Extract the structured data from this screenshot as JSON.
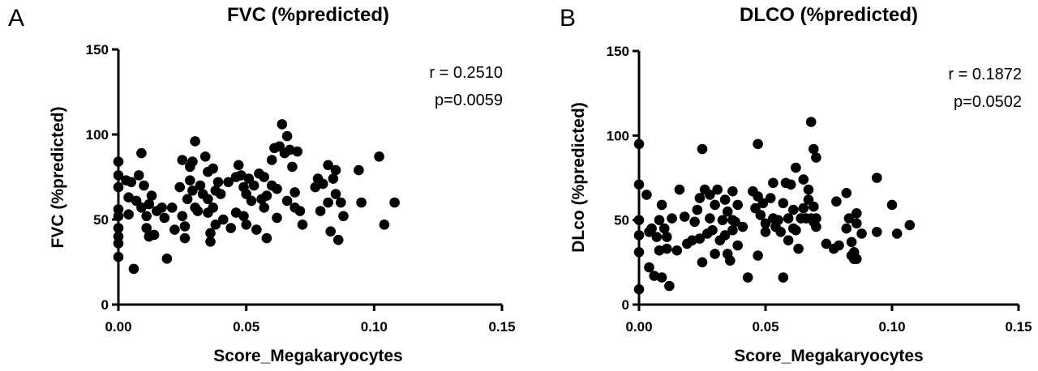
{
  "chart_data": [
    {
      "type": "scatter",
      "panel_label": "A",
      "title": "FVC (%predicted)",
      "xlabel": "Score_Megakaryocytes",
      "ylabel": "FVC (%predicted)",
      "xlim": [
        0,
        0.15
      ],
      "ylim": [
        0,
        150
      ],
      "xticks": [
        0,
        0.05,
        0.1,
        0.15
      ],
      "xtick_labels": [
        "0.00",
        "0.05",
        "0.10",
        "0.15"
      ],
      "yticks": [
        0,
        50,
        100,
        150
      ],
      "ytick_labels": [
        "0",
        "50",
        "100",
        "150"
      ],
      "annotations": [
        "r = 0.2510",
        "p=0.0059"
      ],
      "points": [
        [
          0.0,
          84
        ],
        [
          0.0,
          76
        ],
        [
          0.0,
          69
        ],
        [
          0.0,
          56
        ],
        [
          0.0,
          52
        ],
        [
          0.0,
          45
        ],
        [
          0.0,
          40
        ],
        [
          0.0,
          36
        ],
        [
          0.0,
          28
        ],
        [
          0.003,
          73
        ],
        [
          0.004,
          63
        ],
        [
          0.004,
          53
        ],
        [
          0.005,
          72
        ],
        [
          0.006,
          21
        ],
        [
          0.007,
          61
        ],
        [
          0.008,
          76
        ],
        [
          0.009,
          57
        ],
        [
          0.009,
          89
        ],
        [
          0.01,
          70
        ],
        [
          0.011,
          52
        ],
        [
          0.011,
          45
        ],
        [
          0.012,
          59
        ],
        [
          0.012,
          40
        ],
        [
          0.013,
          64
        ],
        [
          0.014,
          41
        ],
        [
          0.015,
          55
        ],
        [
          0.017,
          57
        ],
        [
          0.018,
          51
        ],
        [
          0.019,
          27
        ],
        [
          0.021,
          57
        ],
        [
          0.022,
          44
        ],
        [
          0.024,
          69
        ],
        [
          0.025,
          85
        ],
        [
          0.025,
          52
        ],
        [
          0.026,
          46
        ],
        [
          0.026,
          39
        ],
        [
          0.027,
          62
        ],
        [
          0.028,
          81
        ],
        [
          0.028,
          73
        ],
        [
          0.029,
          67
        ],
        [
          0.029,
          84
        ],
        [
          0.03,
          57
        ],
        [
          0.03,
          96
        ],
        [
          0.031,
          55
        ],
        [
          0.032,
          70
        ],
        [
          0.033,
          65
        ],
        [
          0.034,
          87
        ],
        [
          0.035,
          78
        ],
        [
          0.035,
          62
        ],
        [
          0.035,
          54
        ],
        [
          0.036,
          42
        ],
        [
          0.036,
          37
        ],
        [
          0.037,
          80
        ],
        [
          0.037,
          57
        ],
        [
          0.038,
          67
        ],
        [
          0.038,
          47
        ],
        [
          0.039,
          72
        ],
        [
          0.04,
          65
        ],
        [
          0.041,
          50
        ],
        [
          0.043,
          72
        ],
        [
          0.044,
          45
        ],
        [
          0.046,
          75
        ],
        [
          0.046,
          54
        ],
        [
          0.047,
          82
        ],
        [
          0.048,
          76
        ],
        [
          0.049,
          69
        ],
        [
          0.049,
          52
        ],
        [
          0.05,
          65
        ],
        [
          0.05,
          47
        ],
        [
          0.051,
          74
        ],
        [
          0.052,
          61
        ],
        [
          0.053,
          70
        ],
        [
          0.054,
          44
        ],
        [
          0.055,
          77
        ],
        [
          0.056,
          62
        ],
        [
          0.057,
          75
        ],
        [
          0.057,
          57
        ],
        [
          0.058,
          64
        ],
        [
          0.058,
          39
        ],
        [
          0.06,
          85
        ],
        [
          0.06,
          70
        ],
        [
          0.061,
          92
        ],
        [
          0.062,
          68
        ],
        [
          0.062,
          51
        ],
        [
          0.063,
          93
        ],
        [
          0.064,
          106
        ],
        [
          0.065,
          89
        ],
        [
          0.066,
          99
        ],
        [
          0.066,
          61
        ],
        [
          0.067,
          91
        ],
        [
          0.068,
          81
        ],
        [
          0.069,
          66
        ],
        [
          0.069,
          57
        ],
        [
          0.07,
          90
        ],
        [
          0.071,
          55
        ],
        [
          0.072,
          47
        ],
        [
          0.077,
          69
        ],
        [
          0.078,
          74
        ],
        [
          0.079,
          55
        ],
        [
          0.08,
          71
        ],
        [
          0.082,
          82
        ],
        [
          0.082,
          60
        ],
        [
          0.083,
          43
        ],
        [
          0.084,
          74
        ],
        [
          0.085,
          79
        ],
        [
          0.085,
          65
        ],
        [
          0.086,
          38
        ],
        [
          0.087,
          60
        ],
        [
          0.088,
          52
        ],
        [
          0.094,
          79
        ],
        [
          0.095,
          60
        ],
        [
          0.102,
          87
        ],
        [
          0.104,
          47
        ],
        [
          0.108,
          60
        ]
      ]
    },
    {
      "type": "scatter",
      "panel_label": "B",
      "title": "DLCO (%predicted)",
      "xlabel": "Score_Megakaryocytes",
      "ylabel": "DLco (%predicted)",
      "xlim": [
        0,
        0.15
      ],
      "ylim": [
        0,
        150
      ],
      "xticks": [
        0,
        0.05,
        0.1,
        0.15
      ],
      "xtick_labels": [
        "0.00",
        "0.05",
        "0.10",
        "0.15"
      ],
      "yticks": [
        0,
        50,
        100,
        150
      ],
      "ytick_labels": [
        "0",
        "50",
        "100",
        "150"
      ],
      "annotations": [
        "r = 0.1872",
        "p=0.0502"
      ],
      "points": [
        [
          0.0,
          95
        ],
        [
          0.0,
          71
        ],
        [
          0.0,
          50
        ],
        [
          0.0,
          41
        ],
        [
          0.0,
          31
        ],
        [
          0.0,
          9
        ],
        [
          0.003,
          65
        ],
        [
          0.004,
          43
        ],
        [
          0.004,
          22
        ],
        [
          0.005,
          45
        ],
        [
          0.006,
          17
        ],
        [
          0.007,
          40
        ],
        [
          0.008,
          32
        ],
        [
          0.008,
          50
        ],
        [
          0.009,
          59
        ],
        [
          0.009,
          16
        ],
        [
          0.01,
          45
        ],
        [
          0.011,
          40
        ],
        [
          0.011,
          33
        ],
        [
          0.012,
          11
        ],
        [
          0.013,
          51
        ],
        [
          0.015,
          32
        ],
        [
          0.016,
          68
        ],
        [
          0.018,
          52
        ],
        [
          0.019,
          36
        ],
        [
          0.021,
          38
        ],
        [
          0.022,
          49
        ],
        [
          0.023,
          56
        ],
        [
          0.024,
          63
        ],
        [
          0.024,
          39
        ],
        [
          0.025,
          25
        ],
        [
          0.025,
          92
        ],
        [
          0.026,
          68
        ],
        [
          0.027,
          42
        ],
        [
          0.028,
          65
        ],
        [
          0.028,
          51
        ],
        [
          0.029,
          44
        ],
        [
          0.03,
          59
        ],
        [
          0.03,
          30
        ],
        [
          0.031,
          68
        ],
        [
          0.032,
          38
        ],
        [
          0.033,
          50
        ],
        [
          0.034,
          62
        ],
        [
          0.034,
          41
        ],
        [
          0.035,
          55
        ],
        [
          0.035,
          30
        ],
        [
          0.036,
          26
        ],
        [
          0.037,
          67
        ],
        [
          0.037,
          50
        ],
        [
          0.037,
          44
        ],
        [
          0.038,
          49
        ],
        [
          0.039,
          59
        ],
        [
          0.039,
          35
        ],
        [
          0.041,
          46
        ],
        [
          0.043,
          16
        ],
        [
          0.045,
          67
        ],
        [
          0.046,
          57
        ],
        [
          0.047,
          95
        ],
        [
          0.047,
          64
        ],
        [
          0.047,
          29
        ],
        [
          0.048,
          53
        ],
        [
          0.049,
          60
        ],
        [
          0.05,
          48
        ],
        [
          0.05,
          43
        ],
        [
          0.052,
          63
        ],
        [
          0.053,
          72
        ],
        [
          0.053,
          51
        ],
        [
          0.054,
          46
        ],
        [
          0.055,
          50
        ],
        [
          0.056,
          43
        ],
        [
          0.057,
          60
        ],
        [
          0.057,
          16
        ],
        [
          0.058,
          72
        ],
        [
          0.059,
          51
        ],
        [
          0.059,
          38
        ],
        [
          0.06,
          71
        ],
        [
          0.061,
          45
        ],
        [
          0.061,
          56
        ],
        [
          0.062,
          81
        ],
        [
          0.062,
          44
        ],
        [
          0.063,
          33
        ],
        [
          0.064,
          51
        ],
        [
          0.065,
          74
        ],
        [
          0.065,
          57
        ],
        [
          0.066,
          51
        ],
        [
          0.067,
          62
        ],
        [
          0.067,
          68
        ],
        [
          0.068,
          108
        ],
        [
          0.068,
          51
        ],
        [
          0.069,
          92
        ],
        [
          0.069,
          49
        ],
        [
          0.07,
          87
        ],
        [
          0.07,
          51
        ],
        [
          0.069,
          58
        ],
        [
          0.07,
          46
        ],
        [
          0.074,
          36
        ],
        [
          0.077,
          33
        ],
        [
          0.078,
          61
        ],
        [
          0.079,
          35
        ],
        [
          0.082,
          66
        ],
        [
          0.082,
          45
        ],
        [
          0.083,
          51
        ],
        [
          0.084,
          29
        ],
        [
          0.084,
          37
        ],
        [
          0.085,
          31
        ],
        [
          0.085,
          27
        ],
        [
          0.086,
          54
        ],
        [
          0.086,
          48
        ],
        [
          0.086,
          27
        ],
        [
          0.088,
          42
        ],
        [
          0.094,
          75
        ],
        [
          0.094,
          43
        ],
        [
          0.1,
          59
        ],
        [
          0.102,
          42
        ],
        [
          0.107,
          47
        ]
      ]
    }
  ]
}
